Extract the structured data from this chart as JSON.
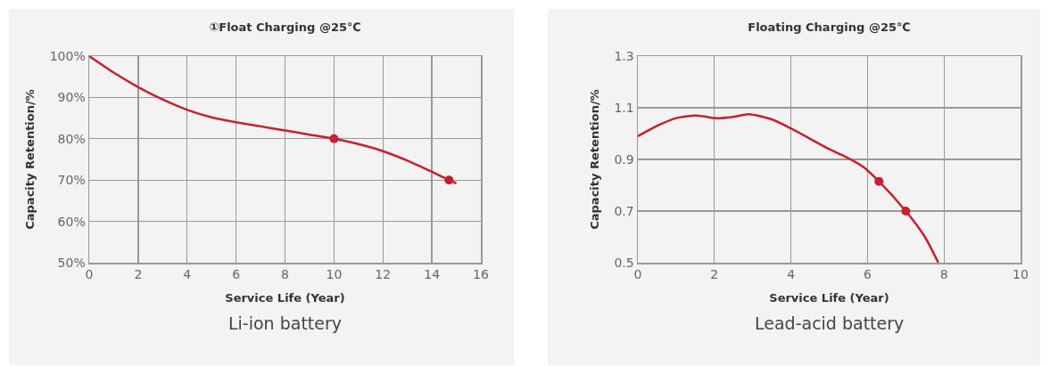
{
  "chart_data": [
    {
      "type": "line",
      "title": "①Float Charging @25℃",
      "xlabel": "Service Life (Year)",
      "ylabel": "Capacity Retention/%",
      "annotations": [
        "Li-ion battery"
      ],
      "xlim": [
        0,
        16
      ],
      "xticks": [
        0,
        2,
        4,
        6,
        8,
        10,
        12,
        14,
        16
      ],
      "ylim": [
        50,
        100
      ],
      "grid": true,
      "yticks": [
        {
          "value": 50,
          "label": "50%"
        },
        {
          "value": 60,
          "label": "60%"
        },
        {
          "value": 70,
          "label": "70%"
        },
        {
          "value": 80,
          "label": "80%"
        },
        {
          "value": 90,
          "label": "90%"
        },
        {
          "value": 100,
          "label": "100%"
        }
      ],
      "series": [
        {
          "type": "line",
          "marker": "none",
          "color": "#c8202e",
          "x": [
            0,
            1,
            2,
            3,
            4,
            5,
            6,
            7,
            8,
            9,
            10,
            11,
            12,
            13,
            14,
            14.7,
            15
          ],
          "values": [
            100,
            96,
            92.5,
            89.5,
            87,
            85.2,
            84,
            83,
            82,
            81,
            80,
            78.7,
            77,
            74.7,
            72,
            70,
            69.2
          ]
        },
        {
          "type": "scatter",
          "marker": "circle",
          "color": "#c8202e",
          "x": [
            10,
            14.7
          ],
          "values": [
            80,
            70
          ]
        }
      ]
    },
    {
      "type": "line",
      "title": "Floating Charging @25℃",
      "xlabel": "Service Life (Year)",
      "ylabel": "Capacity Retention/%",
      "annotations": [
        "Lead-acid battery"
      ],
      "xlim": [
        0,
        10
      ],
      "xticks": [
        0,
        2,
        4,
        6,
        8,
        10
      ],
      "ylim": [
        0.5,
        1.3
      ],
      "yticks": [
        0.5,
        0.7,
        0.9,
        1.1,
        1.3
      ],
      "grid": true,
      "series": [
        {
          "type": "line",
          "marker": "none",
          "color": "#c8202e",
          "x": [
            0,
            0.5,
            1,
            1.5,
            1.8,
            2,
            2.5,
            2.9,
            3.5,
            4,
            5,
            5.5,
            5.9,
            6.3,
            7,
            7.5,
            7.85
          ],
          "values": [
            0.99,
            1.03,
            1.06,
            1.07,
            1.065,
            1.06,
            1.065,
            1.075,
            1.055,
            1.02,
            0.94,
            0.905,
            0.87,
            0.815,
            0.7,
            0.6,
            0.5
          ]
        },
        {
          "type": "scatter",
          "marker": "circle",
          "color": "#c8202e",
          "x": [
            6.3,
            7
          ],
          "values": [
            0.815,
            0.7
          ]
        }
      ]
    }
  ]
}
